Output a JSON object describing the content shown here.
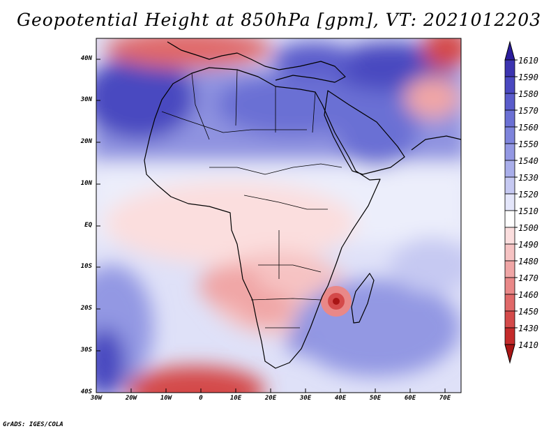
{
  "title": "Geopotential Height at 850hPa [gpm], VT: 2021012203",
  "credit": "GrADS: IGES/COLA",
  "map": {
    "region": "Africa and Arabian Peninsula",
    "lat_labels": [
      "40N",
      "30N",
      "20N",
      "10N",
      "EQ",
      "10S",
      "20S",
      "30S",
      "40S"
    ],
    "lon_labels": [
      "30W",
      "20W",
      "10W",
      "0",
      "10E",
      "20E",
      "30E",
      "40E",
      "50E",
      "60E",
      "70E"
    ]
  },
  "colorbar": {
    "labels": [
      "1610",
      "1590",
      "1580",
      "1570",
      "1560",
      "1550",
      "1540",
      "1530",
      "1520",
      "1510",
      "1500",
      "1490",
      "1480",
      "1470",
      "1460",
      "1450",
      "1430",
      "1410"
    ],
    "colors": [
      "#2b1d9c",
      "#3c34b0",
      "#4a48c0",
      "#5a5ccb",
      "#6b70d4",
      "#7e84dc",
      "#9398e3",
      "#a9aeea",
      "#c6c9f2",
      "#e4e6fa",
      "#ffffff",
      "#fbdede",
      "#f6c3c3",
      "#f0a6a6",
      "#e98888",
      "#e06969",
      "#d44a4a",
      "#c42b2b",
      "#a91515"
    ]
  }
}
